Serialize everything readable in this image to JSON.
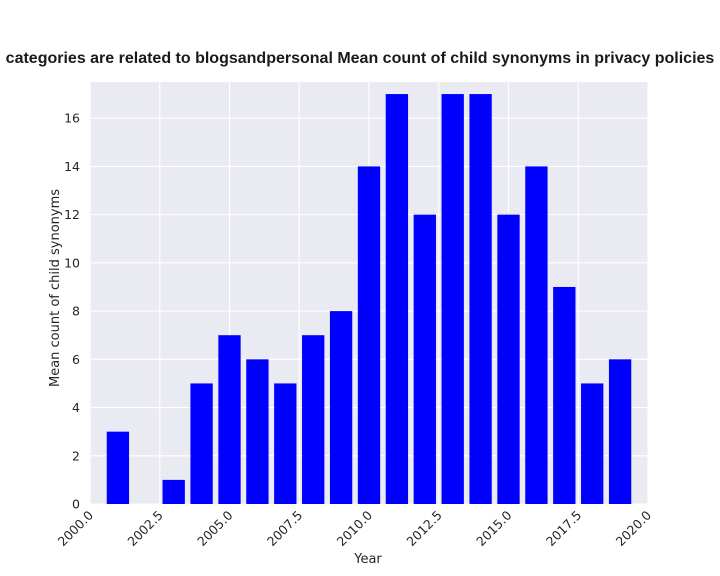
{
  "chart_data": {
    "type": "bar",
    "title": "categories are related to blogsandpersonal Mean count of child synonyms in privacy policies",
    "xlabel": "Year",
    "ylabel": "Mean count of child synonyms",
    "x": [
      2001,
      2002,
      2003,
      2004,
      2005,
      2006,
      2007,
      2008,
      2009,
      2010,
      2011,
      2012,
      2013,
      2014,
      2015,
      2016,
      2017,
      2018,
      2019
    ],
    "values": [
      3,
      0,
      1,
      5,
      7,
      6,
      5,
      7,
      8,
      14,
      17,
      12,
      17,
      17,
      12,
      14,
      9,
      5,
      6
    ],
    "xlim": [
      2000,
      2020
    ],
    "ylim": [
      0,
      17.5
    ],
    "xticks": [
      2000,
      2002.5,
      2005,
      2007.5,
      2010,
      2012.5,
      2015,
      2017.5,
      2020
    ],
    "xtick_labels": [
      "2000.0",
      "2002.5",
      "2005.0",
      "2007.5",
      "2010.0",
      "2012.5",
      "2015.0",
      "2017.5",
      "2020.0"
    ],
    "yticks": [
      0,
      2,
      4,
      6,
      8,
      10,
      12,
      14,
      16
    ],
    "ytick_labels": [
      "0",
      "2",
      "4",
      "6",
      "8",
      "10",
      "12",
      "14",
      "16"
    ],
    "bar_width": 0.8,
    "grid": true,
    "colors": {
      "bar": "#0000ff",
      "plot_bg": "#eaeaf2",
      "grid": "#ffffff"
    }
  }
}
